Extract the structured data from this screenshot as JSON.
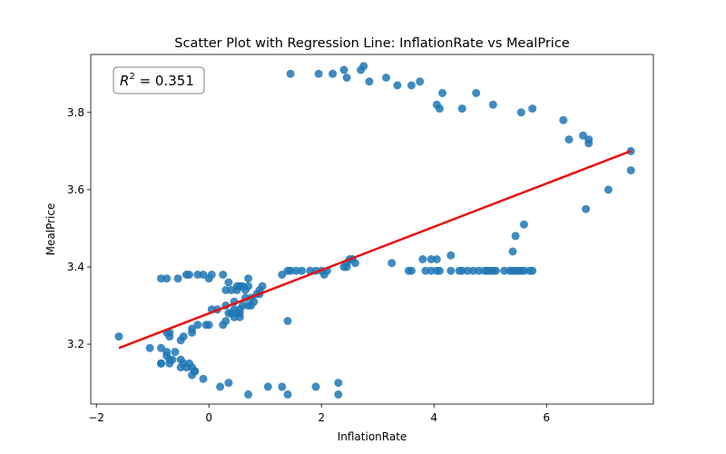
{
  "chart_data": {
    "type": "scatter",
    "title": "Scatter Plot with Regression Line: InflationRate vs MealPrice",
    "xlabel": "InflationRate",
    "ylabel": "MealPrice",
    "xlim": [
      -2.1,
      7.9
    ],
    "ylim": [
      3.045,
      3.95
    ],
    "xticks": [
      -2,
      0,
      2,
      4,
      6
    ],
    "yticks": [
      3.2,
      3.4,
      3.6,
      3.8
    ],
    "xtick_labels": [
      "−2",
      "0",
      "2",
      "4",
      "6"
    ],
    "ytick_labels": [
      "3.2",
      "3.4",
      "3.6",
      "3.8"
    ],
    "annotation": {
      "text_prefix": "R",
      "text_sup": "2",
      "text_value": " = 0.351",
      "position": "top-left"
    },
    "point_color": "#1f77b4",
    "line_color": "#e8100c",
    "regression_line": {
      "x": [
        -1.6,
        7.5
      ],
      "y": [
        3.19,
        3.7
      ]
    },
    "series": [
      {
        "x": [
          -1.6,
          -1.05,
          -0.85,
          -0.85,
          -0.75,
          -0.75,
          -0.7,
          -0.65,
          -0.5,
          -0.35,
          -0.25,
          -0.3,
          0.3,
          0.45,
          0.55,
          0.75,
          0.85,
          0.95,
          1.3,
          -0.85,
          -0.75,
          -0.55,
          -0.4,
          -0.35,
          -0.2,
          -0.1,
          0.0,
          0.05,
          0.25,
          0.35,
          0.5,
          0.55,
          0.7,
          0.9,
          -0.75,
          -0.7,
          -0.7,
          -0.5,
          -0.45,
          -0.3,
          -0.3,
          -0.2,
          -0.05,
          0.0,
          0.05,
          0.15,
          0.25,
          0.3,
          0.35,
          0.4,
          0.45,
          0.5,
          0.55,
          0.6,
          0.65,
          0.7,
          0.75,
          0.8,
          0.9,
          0.3,
          0.4,
          0.5,
          0.6,
          0.65,
          0.7,
          0.45,
          0.55,
          1.4,
          -0.85,
          -0.7,
          -0.6,
          -0.5,
          -0.45,
          -0.4,
          -0.3,
          -0.25,
          -0.1,
          0.2,
          0.35,
          0.7,
          1.05,
          1.3,
          1.4,
          1.9,
          2.3,
          2.3,
          1.4,
          1.45,
          1.55,
          1.65,
          1.8,
          1.9,
          2.0,
          2.05,
          2.1,
          2.4,
          2.45,
          2.5,
          2.55,
          2.6,
          2.45,
          3.25,
          3.55,
          3.6,
          3.85,
          3.95,
          4.05,
          4.1,
          4.3,
          4.45,
          4.5,
          4.6,
          4.7,
          4.8,
          4.9,
          4.95,
          5.0,
          5.05,
          5.1,
          5.25,
          5.35,
          5.4,
          5.45,
          5.5,
          5.55,
          5.6,
          5.7,
          5.75,
          3.8,
          3.95,
          4.05,
          4.3,
          5.4,
          5.45,
          5.6,
          6.7,
          1.45,
          1.95,
          2.2,
          2.4,
          2.45,
          2.7,
          2.75,
          2.85,
          3.15,
          3.35,
          3.6,
          3.75,
          4.05,
          4.15,
          4.1,
          4.5,
          4.75,
          5.05,
          5.55,
          5.75,
          6.3,
          6.4,
          6.65,
          6.75,
          6.75,
          7.1,
          7.5,
          7.5
        ],
        "y": [
          3.22,
          3.19,
          3.19,
          3.15,
          3.17,
          3.18,
          3.15,
          3.16,
          3.14,
          3.15,
          3.13,
          3.14,
          3.3,
          3.31,
          3.29,
          3.32,
          3.33,
          3.35,
          3.38,
          3.37,
          3.37,
          3.37,
          3.38,
          3.38,
          3.38,
          3.38,
          3.37,
          3.38,
          3.38,
          3.36,
          3.35,
          3.35,
          3.35,
          3.34,
          3.23,
          3.23,
          3.22,
          3.21,
          3.22,
          3.23,
          3.24,
          3.25,
          3.25,
          3.25,
          3.29,
          3.29,
          3.25,
          3.26,
          3.28,
          3.28,
          3.29,
          3.28,
          3.28,
          3.3,
          3.32,
          3.3,
          3.3,
          3.31,
          3.33,
          3.34,
          3.34,
          3.34,
          3.35,
          3.34,
          3.37,
          3.27,
          3.27,
          3.26,
          3.15,
          3.16,
          3.18,
          3.16,
          3.15,
          3.14,
          3.12,
          3.13,
          3.11,
          3.09,
          3.1,
          3.07,
          3.09,
          3.09,
          3.07,
          3.09,
          3.07,
          3.1,
          3.39,
          3.39,
          3.39,
          3.39,
          3.39,
          3.39,
          3.39,
          3.38,
          3.39,
          3.4,
          3.4,
          3.42,
          3.42,
          3.41,
          3.41,
          3.41,
          3.39,
          3.39,
          3.39,
          3.39,
          3.39,
          3.39,
          3.39,
          3.39,
          3.39,
          3.39,
          3.39,
          3.39,
          3.39,
          3.39,
          3.39,
          3.39,
          3.39,
          3.39,
          3.39,
          3.39,
          3.39,
          3.39,
          3.39,
          3.39,
          3.39,
          3.39,
          3.42,
          3.42,
          3.42,
          3.43,
          3.44,
          3.48,
          3.51,
          3.55,
          3.9,
          3.9,
          3.9,
          3.91,
          3.89,
          3.91,
          3.92,
          3.88,
          3.89,
          3.87,
          3.87,
          3.88,
          3.82,
          3.85,
          3.81,
          3.81,
          3.85,
          3.82,
          3.8,
          3.81,
          3.78,
          3.73,
          3.74,
          3.72,
          3.73,
          3.6,
          3.7,
          3.65
        ]
      }
    ]
  }
}
